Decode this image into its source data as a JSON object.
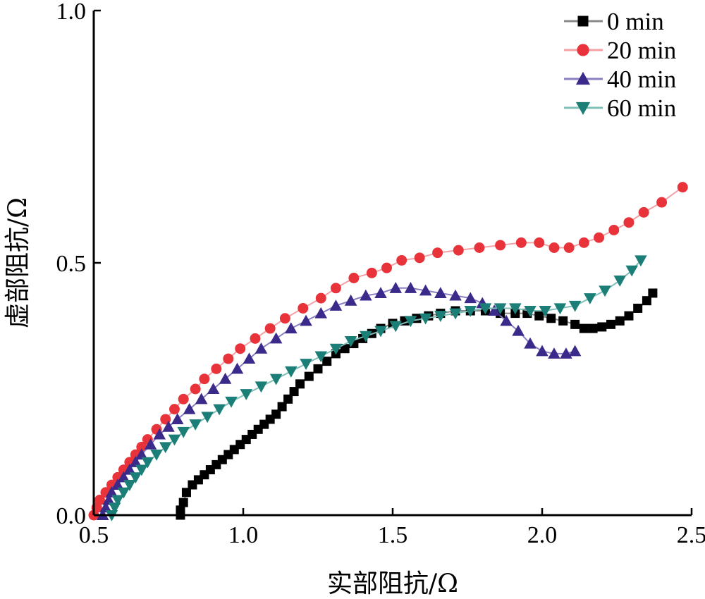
{
  "chart_data": {
    "type": "scatter",
    "title": "",
    "xlabel": "实部阻抗/Ω",
    "ylabel": "虚部阻抗/Ω",
    "xlim": [
      0.5,
      2.5
    ],
    "ylim": [
      0.0,
      1.0
    ],
    "xticks": [
      "0.5",
      "1.0",
      "1.5",
      "2.0",
      "2.5"
    ],
    "yticks": [
      "0.0",
      "0.5",
      "1.0"
    ],
    "grid": false,
    "legend_position": "top-right",
    "series": [
      {
        "name": "0 min",
        "marker": "square",
        "color": "#000000",
        "line_color": "#888888",
        "points": [
          [
            0.79,
            0.0
          ],
          [
            0.79,
            0.01
          ],
          [
            0.8,
            0.025
          ],
          [
            0.81,
            0.045
          ],
          [
            0.83,
            0.06
          ],
          [
            0.85,
            0.07
          ],
          [
            0.87,
            0.08
          ],
          [
            0.89,
            0.09
          ],
          [
            0.91,
            0.1
          ],
          [
            0.93,
            0.11
          ],
          [
            0.95,
            0.12
          ],
          [
            0.97,
            0.13
          ],
          [
            0.99,
            0.14
          ],
          [
            1.01,
            0.15
          ],
          [
            1.03,
            0.16
          ],
          [
            1.05,
            0.17
          ],
          [
            1.07,
            0.18
          ],
          [
            1.09,
            0.19
          ],
          [
            1.11,
            0.2
          ],
          [
            1.13,
            0.215
          ],
          [
            1.15,
            0.23
          ],
          [
            1.17,
            0.245
          ],
          [
            1.19,
            0.26
          ],
          [
            1.22,
            0.275
          ],
          [
            1.25,
            0.29
          ],
          [
            1.28,
            0.305
          ],
          [
            1.31,
            0.32
          ],
          [
            1.34,
            0.33
          ],
          [
            1.37,
            0.34
          ],
          [
            1.4,
            0.35
          ],
          [
            1.43,
            0.36
          ],
          [
            1.46,
            0.37
          ],
          [
            1.5,
            0.38
          ],
          [
            1.54,
            0.385
          ],
          [
            1.58,
            0.39
          ],
          [
            1.62,
            0.395
          ],
          [
            1.66,
            0.4
          ],
          [
            1.71,
            0.405
          ],
          [
            1.76,
            0.405
          ],
          [
            1.81,
            0.405
          ],
          [
            1.86,
            0.4
          ],
          [
            1.91,
            0.4
          ],
          [
            1.95,
            0.4
          ],
          [
            1.99,
            0.395
          ],
          [
            2.03,
            0.39
          ],
          [
            2.07,
            0.385
          ],
          [
            2.11,
            0.378
          ],
          [
            2.14,
            0.37
          ],
          [
            2.17,
            0.37
          ],
          [
            2.2,
            0.373
          ],
          [
            2.23,
            0.378
          ],
          [
            2.26,
            0.385
          ],
          [
            2.29,
            0.395
          ],
          [
            2.32,
            0.41
          ],
          [
            2.35,
            0.425
          ],
          [
            2.37,
            0.44
          ]
        ]
      },
      {
        "name": "20 min",
        "marker": "circle",
        "color": "#e8333a",
        "line_color": "#f4a0a4",
        "points": [
          [
            0.5,
            0.0
          ],
          [
            0.51,
            0.015
          ],
          [
            0.52,
            0.03
          ],
          [
            0.54,
            0.045
          ],
          [
            0.56,
            0.06
          ],
          [
            0.58,
            0.075
          ],
          [
            0.6,
            0.09
          ],
          [
            0.62,
            0.105
          ],
          [
            0.64,
            0.12
          ],
          [
            0.66,
            0.135
          ],
          [
            0.68,
            0.15
          ],
          [
            0.71,
            0.17
          ],
          [
            0.74,
            0.19
          ],
          [
            0.77,
            0.21
          ],
          [
            0.8,
            0.23
          ],
          [
            0.84,
            0.25
          ],
          [
            0.87,
            0.27
          ],
          [
            0.91,
            0.29
          ],
          [
            0.95,
            0.31
          ],
          [
            0.99,
            0.33
          ],
          [
            1.04,
            0.35
          ],
          [
            1.09,
            0.37
          ],
          [
            1.14,
            0.39
          ],
          [
            1.2,
            0.41
          ],
          [
            1.26,
            0.43
          ],
          [
            1.31,
            0.45
          ],
          [
            1.37,
            0.47
          ],
          [
            1.43,
            0.48
          ],
          [
            1.48,
            0.49
          ],
          [
            1.53,
            0.505
          ],
          [
            1.59,
            0.51
          ],
          [
            1.65,
            0.52
          ],
          [
            1.72,
            0.525
          ],
          [
            1.79,
            0.53
          ],
          [
            1.86,
            0.535
          ],
          [
            1.93,
            0.54
          ],
          [
            1.99,
            0.54
          ],
          [
            2.04,
            0.53
          ],
          [
            2.09,
            0.53
          ],
          [
            2.14,
            0.54
          ],
          [
            2.19,
            0.55
          ],
          [
            2.24,
            0.565
          ],
          [
            2.29,
            0.58
          ],
          [
            2.34,
            0.6
          ],
          [
            2.4,
            0.62
          ],
          [
            2.47,
            0.65
          ]
        ]
      },
      {
        "name": "40 min",
        "marker": "triangle-up",
        "color": "#3c2a8a",
        "line_color": "#8a7fc0",
        "points": [
          [
            0.53,
            0.0
          ],
          [
            0.54,
            0.015
          ],
          [
            0.55,
            0.03
          ],
          [
            0.56,
            0.045
          ],
          [
            0.58,
            0.06
          ],
          [
            0.6,
            0.075
          ],
          [
            0.62,
            0.09
          ],
          [
            0.64,
            0.105
          ],
          [
            0.66,
            0.12
          ],
          [
            0.69,
            0.14
          ],
          [
            0.72,
            0.16
          ],
          [
            0.75,
            0.175
          ],
          [
            0.78,
            0.19
          ],
          [
            0.82,
            0.21
          ],
          [
            0.86,
            0.23
          ],
          [
            0.9,
            0.25
          ],
          [
            0.94,
            0.27
          ],
          [
            0.98,
            0.29
          ],
          [
            1.02,
            0.31
          ],
          [
            1.06,
            0.33
          ],
          [
            1.11,
            0.35
          ],
          [
            1.16,
            0.37
          ],
          [
            1.21,
            0.385
          ],
          [
            1.26,
            0.4
          ],
          [
            1.31,
            0.415
          ],
          [
            1.36,
            0.425
          ],
          [
            1.41,
            0.435
          ],
          [
            1.46,
            0.44
          ],
          [
            1.51,
            0.45
          ],
          [
            1.56,
            0.45
          ],
          [
            1.61,
            0.445
          ],
          [
            1.66,
            0.44
          ],
          [
            1.71,
            0.435
          ],
          [
            1.76,
            0.43
          ],
          [
            1.8,
            0.42
          ],
          [
            1.84,
            0.405
          ],
          [
            1.88,
            0.385
          ],
          [
            1.92,
            0.365
          ],
          [
            1.96,
            0.34
          ],
          [
            2.0,
            0.325
          ],
          [
            2.04,
            0.32
          ],
          [
            2.08,
            0.32
          ],
          [
            2.11,
            0.325
          ]
        ]
      },
      {
        "name": "60 min",
        "marker": "triangle-down",
        "color": "#1b7f78",
        "line_color": "#7fbfb8",
        "points": [
          [
            0.56,
            0.0
          ],
          [
            0.57,
            0.015
          ],
          [
            0.58,
            0.03
          ],
          [
            0.6,
            0.045
          ],
          [
            0.62,
            0.06
          ],
          [
            0.64,
            0.075
          ],
          [
            0.66,
            0.09
          ],
          [
            0.68,
            0.105
          ],
          [
            0.71,
            0.12
          ],
          [
            0.74,
            0.135
          ],
          [
            0.77,
            0.15
          ],
          [
            0.8,
            0.165
          ],
          [
            0.84,
            0.18
          ],
          [
            0.88,
            0.195
          ],
          [
            0.92,
            0.21
          ],
          [
            0.96,
            0.225
          ],
          [
            1.01,
            0.24
          ],
          [
            1.06,
            0.255
          ],
          [
            1.11,
            0.27
          ],
          [
            1.16,
            0.285
          ],
          [
            1.21,
            0.3
          ],
          [
            1.26,
            0.315
          ],
          [
            1.31,
            0.33
          ],
          [
            1.36,
            0.345
          ],
          [
            1.41,
            0.355
          ],
          [
            1.46,
            0.365
          ],
          [
            1.51,
            0.375
          ],
          [
            1.56,
            0.385
          ],
          [
            1.61,
            0.39
          ],
          [
            1.66,
            0.395
          ],
          [
            1.71,
            0.4
          ],
          [
            1.76,
            0.405
          ],
          [
            1.81,
            0.41
          ],
          [
            1.86,
            0.41
          ],
          [
            1.91,
            0.41
          ],
          [
            1.96,
            0.405
          ],
          [
            2.01,
            0.405
          ],
          [
            2.06,
            0.41
          ],
          [
            2.11,
            0.415
          ],
          [
            2.16,
            0.43
          ],
          [
            2.21,
            0.445
          ],
          [
            2.26,
            0.465
          ],
          [
            2.3,
            0.485
          ],
          [
            2.33,
            0.505
          ]
        ]
      }
    ]
  }
}
